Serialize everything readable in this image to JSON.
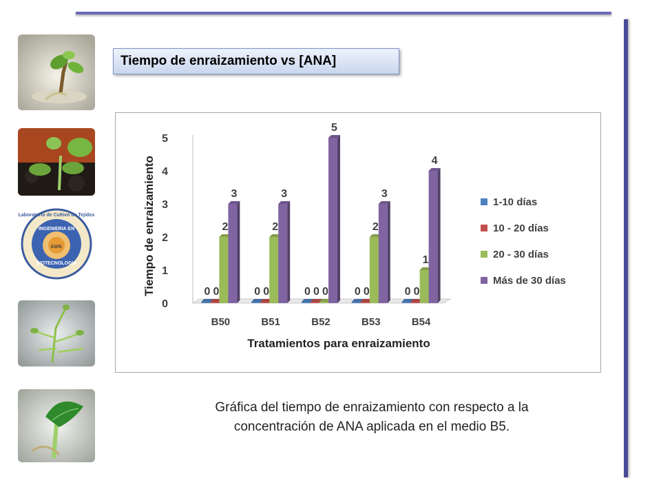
{
  "slide": {
    "title": "Tiempo de enraizamiento vs [ANA]",
    "caption_line1": "Gráfica del tiempo de enraizamiento con respecto a la",
    "caption_line2": "concentración de ANA aplicada en el medio B5.",
    "logo_text_outer": "Laboratorio de Cultivo de Tejidos",
    "logo_text_top": "INGENIERIA EN",
    "logo_text_bottom": "BIOTECNOLOGIA",
    "logo_text_espe": "ESPE"
  },
  "colors": {
    "accent_rule": "#6b6ab8",
    "title_border": "#7f93c9"
  },
  "chart_data": {
    "type": "bar",
    "title": "",
    "xlabel": "Tratamientos para enraizamiento",
    "ylabel": "Tiempo de enraizamiento",
    "ylim": [
      0,
      5
    ],
    "yticks": [
      "0",
      "1",
      "2",
      "3",
      "4",
      "5"
    ],
    "categories": [
      "B50",
      "B51",
      "B52",
      "B53",
      "B54"
    ],
    "legend_position": "right",
    "series": [
      {
        "name": "1-10 días",
        "color": "#4f81bd",
        "values": [
          0,
          0,
          0,
          0,
          0
        ]
      },
      {
        "name": "10 - 20 días",
        "color": "#c0504d",
        "values": [
          0,
          0,
          0,
          0,
          0
        ]
      },
      {
        "name": "20 - 30 días",
        "color": "#9bbb59",
        "values": [
          2,
          2,
          0,
          2,
          1
        ]
      },
      {
        "name": "Más de 30 días",
        "color": "#8064a2",
        "values": [
          3,
          3,
          5,
          3,
          4
        ]
      }
    ]
  }
}
